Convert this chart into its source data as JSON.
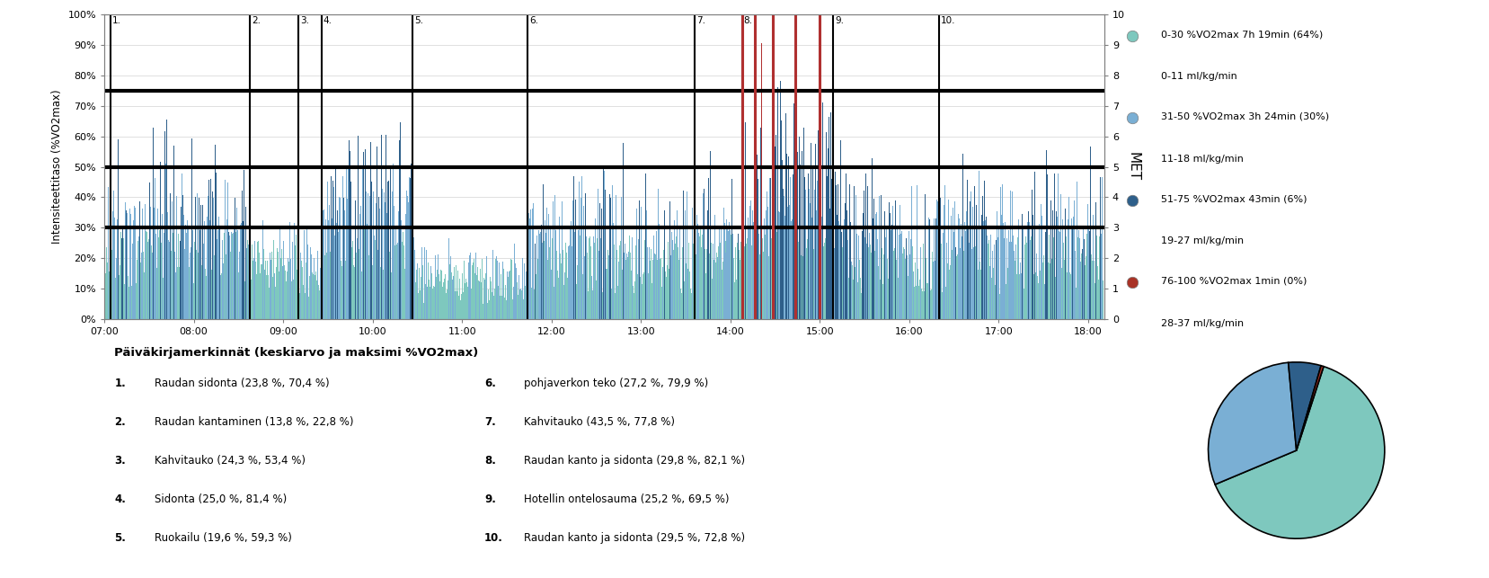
{
  "y_left_label": "Intensiteettitaso (%VO2max)",
  "y_right_label": "MET",
  "horizontal_lines": [
    0.3,
    0.5,
    0.75
  ],
  "colors": {
    "light_teal": "#7EC8BE",
    "light_blue": "#7AAFD4",
    "dark_blue": "#2E5F8A",
    "red": "#B03030"
  },
  "vlines_black": [
    7.07,
    8.63,
    9.17,
    9.43,
    10.45,
    11.73,
    13.6,
    14.13,
    15.15,
    16.33
  ],
  "vlines_red": [
    14.13,
    14.27,
    14.47,
    14.73,
    15.0
  ],
  "event_labels": [
    "1.",
    "2.",
    "3.",
    "4.",
    "5.",
    "6.",
    "7.",
    "8.",
    "9.",
    "10."
  ],
  "event_x": [
    7.09,
    8.65,
    9.19,
    9.45,
    10.47,
    11.75,
    13.62,
    14.15,
    15.17,
    16.35
  ],
  "pie_data": [
    64,
    30,
    6,
    0.5
  ],
  "pie_colors": [
    "#7EC8BE",
    "#7AAFD4",
    "#2E5F8A",
    "#A93226"
  ],
  "pie_startangle": 72,
  "legend_items": [
    {
      "color": "#7EC8BE",
      "label1": "0-30 %VO2max 7h 19min (64%)",
      "label2": "0-11 ml/kg/min"
    },
    {
      "color": "#7AAFD4",
      "label1": "31-50 %VO2max 3h 24min (30%)",
      "label2": "11-18 ml/kg/min"
    },
    {
      "color": "#2E5F8A",
      "label1": "51-75 %VO2max 43min (6%)",
      "label2": "19-27 ml/kg/min"
    },
    {
      "color": "#A93226",
      "label1": "76-100 %VO2max 1min (0%)",
      "label2": "28-37 ml/kg/min"
    }
  ],
  "annotation_title": "Päiväkirjamerkinnät (keskiarvo ja maksimi %VO2max)",
  "annotations_left": [
    [
      "1.",
      "Raudan sidonta (23,8 %, 70,4 %)"
    ],
    [
      "2.",
      "Raudan kantaminen (13,8 %, 22,8 %)"
    ],
    [
      "3.",
      "Kahvitauko (24,3 %, 53,4 %)"
    ],
    [
      "4.",
      "Sidonta (25,0 %, 81,4 %)"
    ],
    [
      "5.",
      "Ruokailu (19,6 %, 59,3 %)"
    ]
  ],
  "annotations_right": [
    [
      "6.",
      "pohjaverkon teko (27,2 %, 79,9 %)"
    ],
    [
      "7.",
      "Kahvitauko (43,5 %, 77,8 %)"
    ],
    [
      "8.",
      "Raudan kanto ja sidonta (29,8 %, 82,1 %)"
    ],
    [
      "9.",
      "Hotellin ontelosauma (25,2 %, 69,5 %)"
    ],
    [
      "10.",
      "Raudan kanto ja sidonta (29,5 %, 72,8 %)"
    ]
  ]
}
